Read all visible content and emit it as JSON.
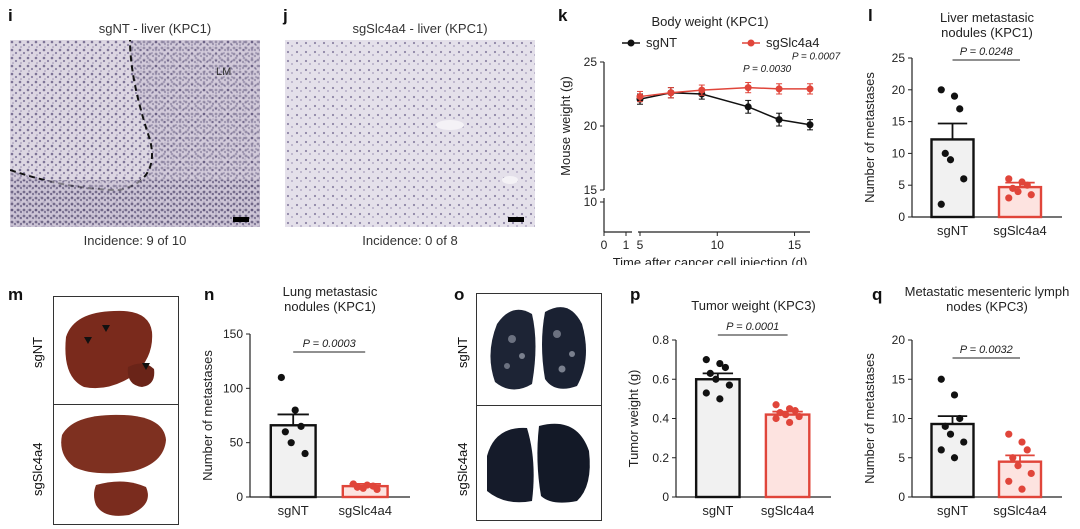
{
  "panels": {
    "i": {
      "label": "i",
      "title": "sgNT - liver (KPC1)",
      "annotation": "LM",
      "caption": "Incidence: 9 of 10"
    },
    "j": {
      "label": "j",
      "title": "sgSlc4a4 - liver (KPC1)",
      "caption": "Incidence: 0 of 8"
    },
    "k": {
      "label": "k"
    },
    "l": {
      "label": "l"
    },
    "m": {
      "label": "m",
      "row1": "sgNT",
      "row2": "sgSlc4a4"
    },
    "n": {
      "label": "n"
    },
    "o": {
      "label": "o",
      "row1": "sgNT",
      "row2": "sgSlc4a4"
    },
    "p": {
      "label": "p"
    },
    "q": {
      "label": "q"
    }
  },
  "chart_data": [
    {
      "id": "k",
      "type": "line",
      "title": "Body weight (KPC1)",
      "xlabel": "Time after cancer cell injection (d)",
      "ylabel": "Mouse weight (g)",
      "xticks": [
        "0",
        "1",
        "5",
        "10",
        "15"
      ],
      "yticks": [
        "10",
        "15",
        "20",
        "25"
      ],
      "ylim": [
        15,
        25
      ],
      "x": [
        5,
        7,
        9,
        12,
        14,
        16
      ],
      "series": [
        {
          "name": "sgNT",
          "color": "#111111",
          "values": [
            22.1,
            22.6,
            22.5,
            21.5,
            20.5,
            20.1
          ],
          "err": [
            0.4,
            0.4,
            0.4,
            0.5,
            0.5,
            0.4
          ]
        },
        {
          "name": "sgSlc4a4",
          "color": "#e0453a",
          "values": [
            22.3,
            22.6,
            22.8,
            23.0,
            22.9,
            22.9
          ],
          "err": [
            0.4,
            0.4,
            0.4,
            0.4,
            0.4,
            0.4
          ]
        }
      ],
      "pvalues": [
        "P = 0.0030",
        "P = 0.0007"
      ]
    },
    {
      "id": "l",
      "type": "bar",
      "title": "Liver metastasic nodules (KPC1)",
      "ylabel": "Number of metastases",
      "categories": [
        "sgNT",
        "sgSlc4a4"
      ],
      "values": [
        12.2,
        4.7
      ],
      "err": [
        2.5,
        0.7
      ],
      "ylim": [
        0,
        25
      ],
      "yticks": [
        "0",
        "5",
        "10",
        "15",
        "20",
        "25"
      ],
      "points": [
        [
          20,
          19,
          17,
          10,
          9,
          6,
          2
        ],
        [
          6,
          5.5,
          5,
          4.5,
          4,
          3.5,
          3
        ]
      ],
      "pvalue": "P = 0.0248"
    },
    {
      "id": "n",
      "type": "bar",
      "title": "Lung metastasic nodules (KPC1)",
      "ylabel": "Number of metastases",
      "categories": [
        "sgNT",
        "sgSlc4a4"
      ],
      "values": [
        66,
        10
      ],
      "err": [
        10,
        2
      ],
      "ylim": [
        0,
        150
      ],
      "yticks": [
        "0",
        "50",
        "100",
        "150"
      ],
      "points": [
        [
          110,
          80,
          65,
          60,
          50,
          40
        ],
        [
          12,
          11,
          10,
          9,
          8,
          7
        ]
      ],
      "pvalue": "P = 0.0003"
    },
    {
      "id": "p",
      "type": "bar",
      "title": "Tumor weight (KPC3)",
      "ylabel": "Tumor weight (g)",
      "categories": [
        "sgNT",
        "sgSlc4a4"
      ],
      "values": [
        0.6,
        0.42
      ],
      "err": [
        0.03,
        0.015
      ],
      "ylim": [
        0,
        0.8
      ],
      "yticks": [
        "0",
        "0.2",
        "0.4",
        "0.6",
        "0.8"
      ],
      "points": [
        [
          0.7,
          0.68,
          0.66,
          0.63,
          0.6,
          0.57,
          0.53,
          0.5
        ],
        [
          0.47,
          0.45,
          0.44,
          0.43,
          0.42,
          0.41,
          0.4,
          0.38
        ]
      ],
      "pvalue": "P = 0.0001"
    },
    {
      "id": "q",
      "type": "bar",
      "title": "Metastatic mesenteric lymph nodes (KPC3)",
      "ylabel": "Number of metastases",
      "categories": [
        "sgNT",
        "sgSlc4a4"
      ],
      "values": [
        9.3,
        4.5
      ],
      "err": [
        1.0,
        0.8
      ],
      "ylim": [
        0,
        20
      ],
      "yticks": [
        "0",
        "5",
        "10",
        "15",
        "20"
      ],
      "points": [
        [
          15,
          13,
          10,
          9,
          8,
          7,
          6,
          5
        ],
        [
          8,
          7,
          6,
          5,
          4,
          3,
          2,
          1
        ]
      ],
      "pvalue": "P = 0.0032"
    }
  ]
}
